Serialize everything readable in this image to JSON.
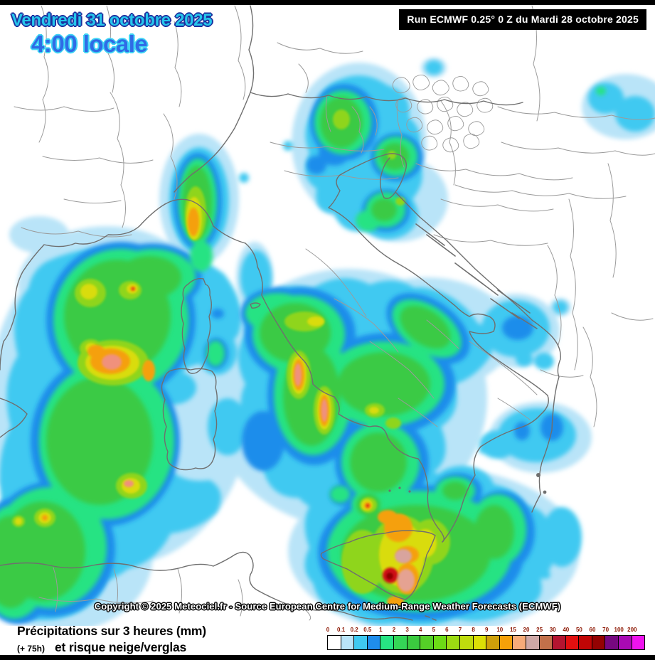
{
  "header": {
    "date_line": "Vendredi 31 octobre 2025",
    "time_line": "4:00 locale",
    "run_label": "Run ECMWF 0.25° 0 Z du Mardi 28 octobre 2025"
  },
  "map": {
    "copyright": "Copyright © 2025 Meteociel.fr - Source European Centre for Medium-Range Weather Forecasts (ECMWF)",
    "border_color": "#8d8d8d",
    "sea_land_color": "#ffffff"
  },
  "legend": {
    "title_line1": "Précipitations sur 3 heures (mm)",
    "lead_time": "(+ 75h)",
    "title_line2": "et risque neige/verglas",
    "stops": [
      {
        "label": "0",
        "color": "#ffffff"
      },
      {
        "label": "0.1",
        "color": "#b9e4f8"
      },
      {
        "label": "0.2",
        "color": "#3fc9f1"
      },
      {
        "label": "0.5",
        "color": "#1f8deb"
      },
      {
        "label": "1",
        "color": "#27e383"
      },
      {
        "label": "2",
        "color": "#35d556"
      },
      {
        "label": "3",
        "color": "#3bca3f"
      },
      {
        "label": "4",
        "color": "#55cf27"
      },
      {
        "label": "5",
        "color": "#6cdb16"
      },
      {
        "label": "6",
        "color": "#9cdb12"
      },
      {
        "label": "7",
        "color": "#bedc0d"
      },
      {
        "label": "8",
        "color": "#dcdf06"
      },
      {
        "label": "9",
        "color": "#cfa00a"
      },
      {
        "label": "10",
        "color": "#f5a009"
      },
      {
        "label": "15",
        "color": "#f7ab79"
      },
      {
        "label": "20",
        "color": "#cfa8a6"
      },
      {
        "label": "25",
        "color": "#c2704a"
      },
      {
        "label": "30",
        "color": "#b41430"
      },
      {
        "label": "40",
        "color": "#e21010"
      },
      {
        "label": "50",
        "color": "#c10505"
      },
      {
        "label": "60",
        "color": "#940202"
      },
      {
        "label": "70",
        "color": "#76087f"
      },
      {
        "label": "100",
        "color": "#a90ab4"
      },
      {
        "label": "200",
        "color": "#ee13ee"
      }
    ]
  }
}
